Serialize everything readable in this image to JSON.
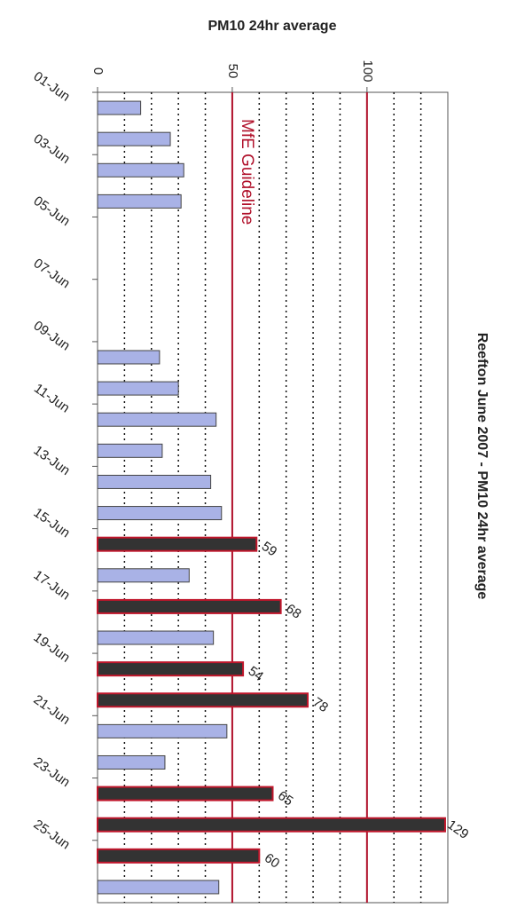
{
  "chart_data": {
    "type": "bar",
    "orientation": "horizontal",
    "axis_label": "PM10 24hr average",
    "title": "Reefton June 2007 - PM10 24hr average",
    "categories": [
      "01-Jun",
      null,
      "03-Jun",
      null,
      "05-Jun",
      null,
      "07-Jun",
      null,
      "09-Jun",
      null,
      "11-Jun",
      null,
      "13-Jun",
      null,
      "15-Jun",
      null,
      "17-Jun",
      null,
      "19-Jun",
      null,
      "21-Jun",
      null,
      "23-Jun",
      null,
      "25-Jun",
      null
    ],
    "values": [
      16,
      27,
      32,
      31,
      null,
      null,
      null,
      null,
      23,
      30,
      44,
      24,
      42,
      46,
      59,
      34,
      68,
      43,
      54,
      78,
      48,
      25,
      65,
      129,
      60,
      45
    ],
    "color": "#a9b2e6",
    "exceed_color": "#333333",
    "exceed_edge": "#c0162b",
    "xlim": [
      0,
      130
    ],
    "xticks": [
      0,
      50,
      100
    ],
    "minor_xticks": [
      10,
      20,
      30,
      40,
      60,
      70,
      80,
      90,
      110,
      120
    ],
    "annotations": [
      {
        "value": 50,
        "label": "MfE Guideline"
      },
      {
        "value": 100
      }
    ],
    "annotation_color": "#b0102a",
    "grid": true
  }
}
